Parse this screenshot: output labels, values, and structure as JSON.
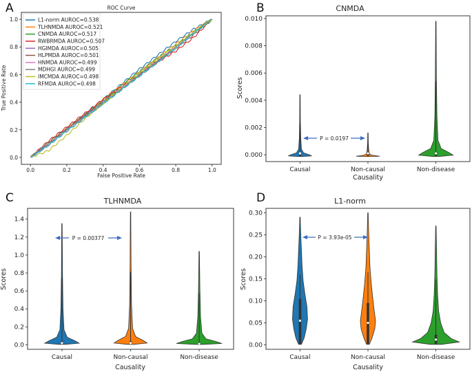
{
  "chart_data": [
    {
      "panel": "A",
      "type": "line",
      "title": "ROC Curve",
      "xlabel": "False Positive Rate",
      "ylabel": "True Positive Rate",
      "xlim": [
        -0.05,
        1.05
      ],
      "ylim": [
        -0.05,
        1.05
      ],
      "xticks": [
        "0.0",
        "0.2",
        "0.4",
        "0.6",
        "0.8",
        "1.0"
      ],
      "yticks": [
        "0.0",
        "0.2",
        "0.4",
        "0.6",
        "0.8",
        "1.0"
      ],
      "legend_position": "upper-left",
      "series": [
        {
          "name": "L1-norm",
          "label": "L1-norm  AUROC=0.538",
          "color": "#1f77b4",
          "x": [
            0,
            0.1,
            0.2,
            0.3,
            0.4,
            0.5,
            0.6,
            0.7,
            0.8,
            0.9,
            1.0
          ],
          "y": [
            0,
            0.09,
            0.2,
            0.31,
            0.42,
            0.53,
            0.64,
            0.74,
            0.84,
            0.93,
            1.0
          ]
        },
        {
          "name": "TLHNMDA",
          "label": "TLHNMDA  AUROC=0.521",
          "color": "#ff7f0e",
          "x": [
            0,
            0.1,
            0.2,
            0.3,
            0.4,
            0.5,
            0.6,
            0.7,
            0.8,
            0.9,
            1.0
          ],
          "y": [
            0,
            0.1,
            0.21,
            0.31,
            0.42,
            0.52,
            0.62,
            0.72,
            0.82,
            0.92,
            1.0
          ]
        },
        {
          "name": "CNMDA",
          "label": "CNMDA  AUROC=0.517",
          "color": "#2ca02c",
          "x": [
            0,
            0.1,
            0.2,
            0.3,
            0.4,
            0.5,
            0.6,
            0.7,
            0.8,
            0.9,
            1.0
          ],
          "y": [
            0,
            0.11,
            0.21,
            0.31,
            0.41,
            0.52,
            0.62,
            0.72,
            0.81,
            0.91,
            1.0
          ]
        },
        {
          "name": "RWBRMDA",
          "label": "RWBRMDA  AUROC=0.507",
          "color": "#d62728",
          "x": [
            0,
            0.1,
            0.2,
            0.3,
            0.4,
            0.5,
            0.6,
            0.7,
            0.8,
            0.9,
            1.0
          ],
          "y": [
            0,
            0.12,
            0.22,
            0.32,
            0.42,
            0.51,
            0.6,
            0.69,
            0.77,
            0.87,
            1.0
          ]
        },
        {
          "name": "HGIMDA",
          "label": "HGIMDA  AUROC=0.505",
          "color": "#9467bd",
          "x": [
            0,
            0.1,
            0.2,
            0.3,
            0.4,
            0.5,
            0.6,
            0.7,
            0.8,
            0.9,
            1.0
          ],
          "y": [
            0,
            0.1,
            0.2,
            0.3,
            0.4,
            0.5,
            0.6,
            0.7,
            0.8,
            0.9,
            1.0
          ]
        },
        {
          "name": "HLPMDA",
          "label": "HLPMDA  AUROC=0.501",
          "color": "#8c564b",
          "x": [
            0,
            0.1,
            0.2,
            0.3,
            0.4,
            0.5,
            0.6,
            0.7,
            0.8,
            0.9,
            1.0
          ],
          "y": [
            0,
            0.11,
            0.21,
            0.3,
            0.4,
            0.5,
            0.6,
            0.7,
            0.79,
            0.89,
            1.0
          ]
        },
        {
          "name": "HNMDA",
          "label": "HNMDA  AUROC=0.499",
          "color": "#e377c2",
          "x": [
            0,
            0.1,
            0.2,
            0.3,
            0.4,
            0.5,
            0.6,
            0.7,
            0.8,
            0.9,
            1.0
          ],
          "y": [
            0,
            0.09,
            0.19,
            0.29,
            0.39,
            0.5,
            0.6,
            0.7,
            0.8,
            0.9,
            1.0
          ]
        },
        {
          "name": "MDHGI",
          "label": "MDHGI  AUROC=0.499",
          "color": "#7f7f7f",
          "x": [
            0,
            0.1,
            0.2,
            0.3,
            0.4,
            0.5,
            0.6,
            0.7,
            0.8,
            0.9,
            1.0
          ],
          "y": [
            0,
            0.1,
            0.2,
            0.29,
            0.39,
            0.49,
            0.59,
            0.69,
            0.8,
            0.9,
            1.0
          ]
        },
        {
          "name": "IMCMDA",
          "label": "IMCMDA  AUROC=0.498",
          "color": "#bcbd22",
          "x": [
            0,
            0.1,
            0.2,
            0.3,
            0.4,
            0.5,
            0.6,
            0.7,
            0.8,
            0.9,
            1.0
          ],
          "y": [
            0,
            0.05,
            0.16,
            0.28,
            0.39,
            0.5,
            0.61,
            0.71,
            0.81,
            0.91,
            1.0
          ]
        },
        {
          "name": "RFMDA",
          "label": "RFMDA  AUROC=0.498",
          "color": "#17becf",
          "x": [
            0,
            0.1,
            0.2,
            0.3,
            0.4,
            0.5,
            0.6,
            0.7,
            0.8,
            0.9,
            1.0
          ],
          "y": [
            0,
            0.09,
            0.19,
            0.29,
            0.39,
            0.49,
            0.59,
            0.69,
            0.79,
            0.9,
            1.0
          ]
        }
      ]
    },
    {
      "panel": "B",
      "type": "violin",
      "title": "CNMDA",
      "xlabel": "Causality",
      "ylabel": "Scores",
      "categories": [
        "Causal",
        "Non-causal",
        "Non-disease"
      ],
      "colors": [
        "#1f77b4",
        "#ff7f0e",
        "#2ca02c"
      ],
      "ylim": [
        -0.0005,
        0.0102
      ],
      "yticks": [
        "0.000",
        "0.002",
        "0.004",
        "0.006",
        "0.008",
        "0.010"
      ],
      "ytick_values": [
        0,
        0.002,
        0.004,
        0.006,
        0.008,
        0.01
      ],
      "max": [
        0.0044,
        0.0016,
        0.0098
      ],
      "median": [
        0.0001,
        0.0001,
        0.0001
      ],
      "p_value": "P = 0.0197"
    },
    {
      "panel": "C",
      "type": "violin",
      "title": "TLHNMDA",
      "xlabel": "Causality",
      "ylabel": "Scores",
      "categories": [
        "Causal",
        "Non-causal",
        "Non-disease"
      ],
      "colors": [
        "#1f77b4",
        "#ff7f0e",
        "#2ca02c"
      ],
      "ylim": [
        -0.05,
        1.52
      ],
      "yticks": [
        "0.0",
        "0.2",
        "0.4",
        "0.6",
        "0.8",
        "1.0",
        "1.2",
        "1.4"
      ],
      "ytick_values": [
        0,
        0.2,
        0.4,
        0.6,
        0.8,
        1.0,
        1.2,
        1.4
      ],
      "max": [
        1.35,
        1.48,
        1.04
      ],
      "median": [
        0.02,
        0.02,
        0.01
      ],
      "p_value": "P = 0.00377"
    },
    {
      "panel": "D",
      "type": "violin",
      "title": "L1-norm",
      "xlabel": "Causality",
      "ylabel": "Scores",
      "categories": [
        "Causal",
        "Non-causal",
        "Non-disease"
      ],
      "colors": [
        "#1f77b4",
        "#ff7f0e",
        "#2ca02c"
      ],
      "ylim": [
        -0.01,
        0.31
      ],
      "yticks": [
        "0.00",
        "0.05",
        "0.10",
        "0.15",
        "0.20",
        "0.25",
        "0.30"
      ],
      "ytick_values": [
        0,
        0.05,
        0.1,
        0.15,
        0.2,
        0.25,
        0.3
      ],
      "max": [
        0.29,
        0.3,
        0.27
      ],
      "median": [
        0.055,
        0.05,
        0.012
      ],
      "p_value": "P = 3.93e-05"
    }
  ]
}
